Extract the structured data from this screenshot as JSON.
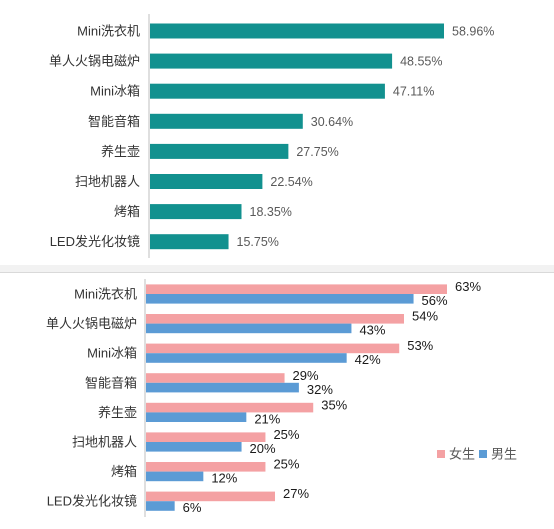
{
  "chart_data": [
    {
      "type": "bar",
      "orientation": "horizontal",
      "categories": [
        "Mini洗衣机",
        "单人火锅电磁炉",
        "Mini冰箱",
        "智能音箱",
        "养生壶",
        "扫地机器人",
        "烤箱",
        "LED发光化妆镜"
      ],
      "values": [
        58.96,
        48.55,
        47.11,
        30.64,
        27.75,
        22.54,
        18.35,
        15.75
      ],
      "value_labels": [
        "58.96%",
        "48.55%",
        "47.11%",
        "30.64%",
        "27.75%",
        "22.54%",
        "18.35%",
        "15.75%"
      ],
      "unit": "%",
      "xlim": [
        0,
        70
      ],
      "grid": false,
      "color": "#12918f"
    },
    {
      "type": "bar",
      "orientation": "horizontal",
      "categories": [
        "Mini洗衣机",
        "单人火锅电磁炉",
        "Mini冰箱",
        "智能音箱",
        "养生壶",
        "扫地机器人",
        "烤箱",
        "LED发光化妆镜"
      ],
      "series": [
        {
          "name": "女生",
          "values": [
            63,
            54,
            53,
            29,
            35,
            25,
            25,
            27
          ],
          "labels": [
            "63%",
            "54%",
            "53%",
            "29%",
            "35%",
            "25%",
            "25%",
            "27%"
          ],
          "color": "#f4a1a3"
        },
        {
          "name": "男生",
          "values": [
            56,
            43,
            42,
            32,
            21,
            20,
            12,
            6
          ],
          "labels": [
            "56%",
            "43%",
            "42%",
            "32%",
            "21%",
            "20%",
            "12%",
            "6%"
          ],
          "color": "#5b9bd5"
        }
      ],
      "unit": "%",
      "xlim": [
        0,
        70
      ],
      "grid": false,
      "legend": "bottom-right"
    }
  ]
}
